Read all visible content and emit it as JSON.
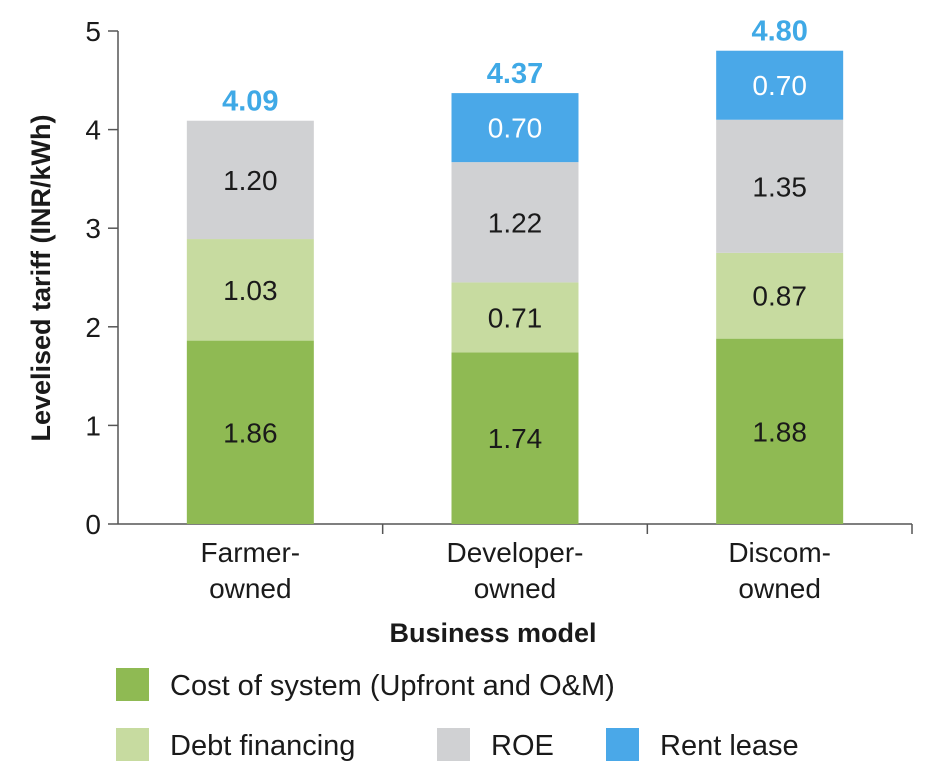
{
  "chart_data": {
    "type": "bar",
    "stacked": true,
    "title": "",
    "xlabel": "Business model",
    "ylabel": "Levelised tariff (INR/kWh)",
    "ylim": [
      0,
      5
    ],
    "yticks": [
      "0",
      "1",
      "2",
      "3",
      "4",
      "5"
    ],
    "categories": [
      [
        "Farmer-",
        "owned"
      ],
      [
        "Developer-",
        "owned"
      ],
      [
        "Discom-",
        "owned"
      ]
    ],
    "series": [
      {
        "name": "Cost of system (Upfront and O&M)",
        "color": "#8fba53",
        "values": [
          1.86,
          1.74,
          1.88
        ],
        "labels": [
          "1.86",
          "1.74",
          "1.88"
        ]
      },
      {
        "name": "Debt financing",
        "color": "#c7dba0",
        "values": [
          1.03,
          0.71,
          0.87
        ],
        "labels": [
          "1.03",
          "0.71",
          "0.87"
        ]
      },
      {
        "name": "ROE",
        "color": "#d0d1d3",
        "values": [
          1.2,
          1.22,
          1.35
        ],
        "labels": [
          "1.20",
          "1.22",
          "1.35"
        ]
      },
      {
        "name": "Rent lease",
        "color": "#4aa8e8",
        "values": [
          0,
          0.7,
          0.7
        ],
        "labels": [
          "",
          "0.70",
          "0.70"
        ]
      }
    ],
    "totals": [
      "4.09",
      "4.37",
      "4.80"
    ],
    "legend_position": "bottom"
  }
}
